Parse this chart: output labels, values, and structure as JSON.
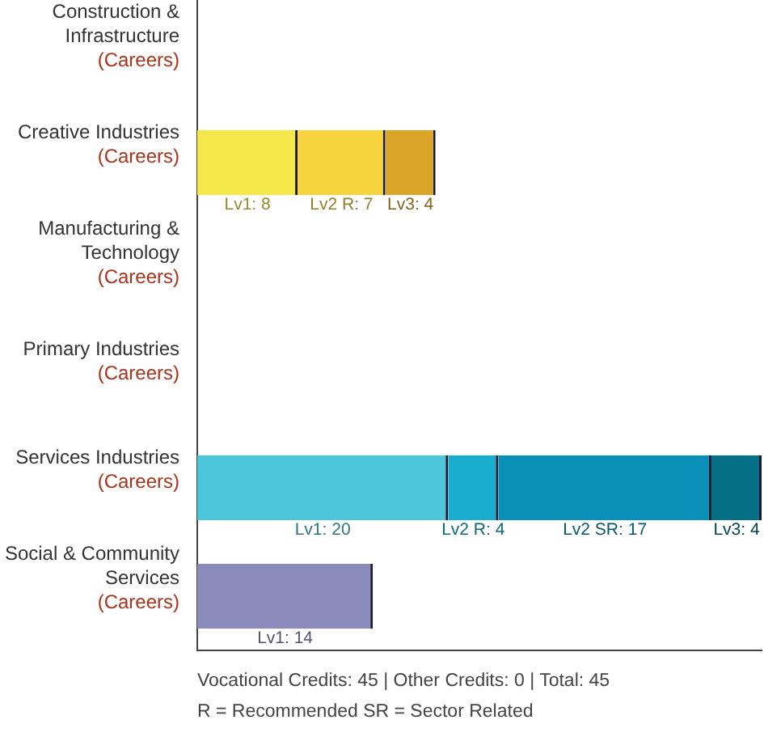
{
  "chart_data": {
    "type": "bar",
    "orientation": "horizontal",
    "stacked": true,
    "categories": [
      "Construction &\nInfrastructure\n(Careers)",
      "Creative Industries\n(Careers)",
      "Manufacturing &\nTechnology\n(Careers)",
      "Primary Industries\n(Careers)",
      "Services Industries\n(Careers)",
      "Social & Community\nServices\n(Careers)"
    ],
    "xlim": [
      0,
      45
    ],
    "series": [
      {
        "colors": [
          "#f5e84a",
          "#f5e84a",
          "#f5e84a",
          "#f5e84a",
          "#4dc5da",
          "#8b8bbb"
        ],
        "values": [
          null,
          8,
          null,
          null,
          20,
          14
        ],
        "value_labels": [
          null,
          "Lv1: 8",
          null,
          null,
          "Lv1: 20",
          "Lv1: 14"
        ]
      },
      {
        "colors": [
          "#f7d43e",
          "#f7d43e",
          "#f7d43e",
          "#f7d43e",
          "#19aed0",
          "#19aed0"
        ],
        "values": [
          null,
          7,
          null,
          null,
          4,
          null
        ],
        "value_labels": [
          null,
          "Lv2 R: 7",
          null,
          null,
          "Lv2 R: 4",
          null
        ]
      },
      {
        "color": "#0a8fb8",
        "values": [
          null,
          null,
          null,
          null,
          17,
          null
        ],
        "value_labels": [
          null,
          null,
          null,
          null,
          "Lv2 SR: 17",
          null
        ]
      },
      {
        "colors": [
          "#dba52a",
          "#dba52a",
          "#dba52a",
          "#dba52a",
          "#056f86",
          "#056f86"
        ],
        "values": [
          null,
          4,
          null,
          null,
          4,
          null
        ],
        "value_labels": [
          null,
          "Lv3: 4",
          null,
          null,
          "Lv3: 4",
          null
        ]
      }
    ],
    "grid": false,
    "legend": false,
    "annotations": [
      "Vocational Credits: 45 | Other Credits: 0 | Total: 45",
      "R = Recommended SR = Sector Related"
    ]
  }
}
